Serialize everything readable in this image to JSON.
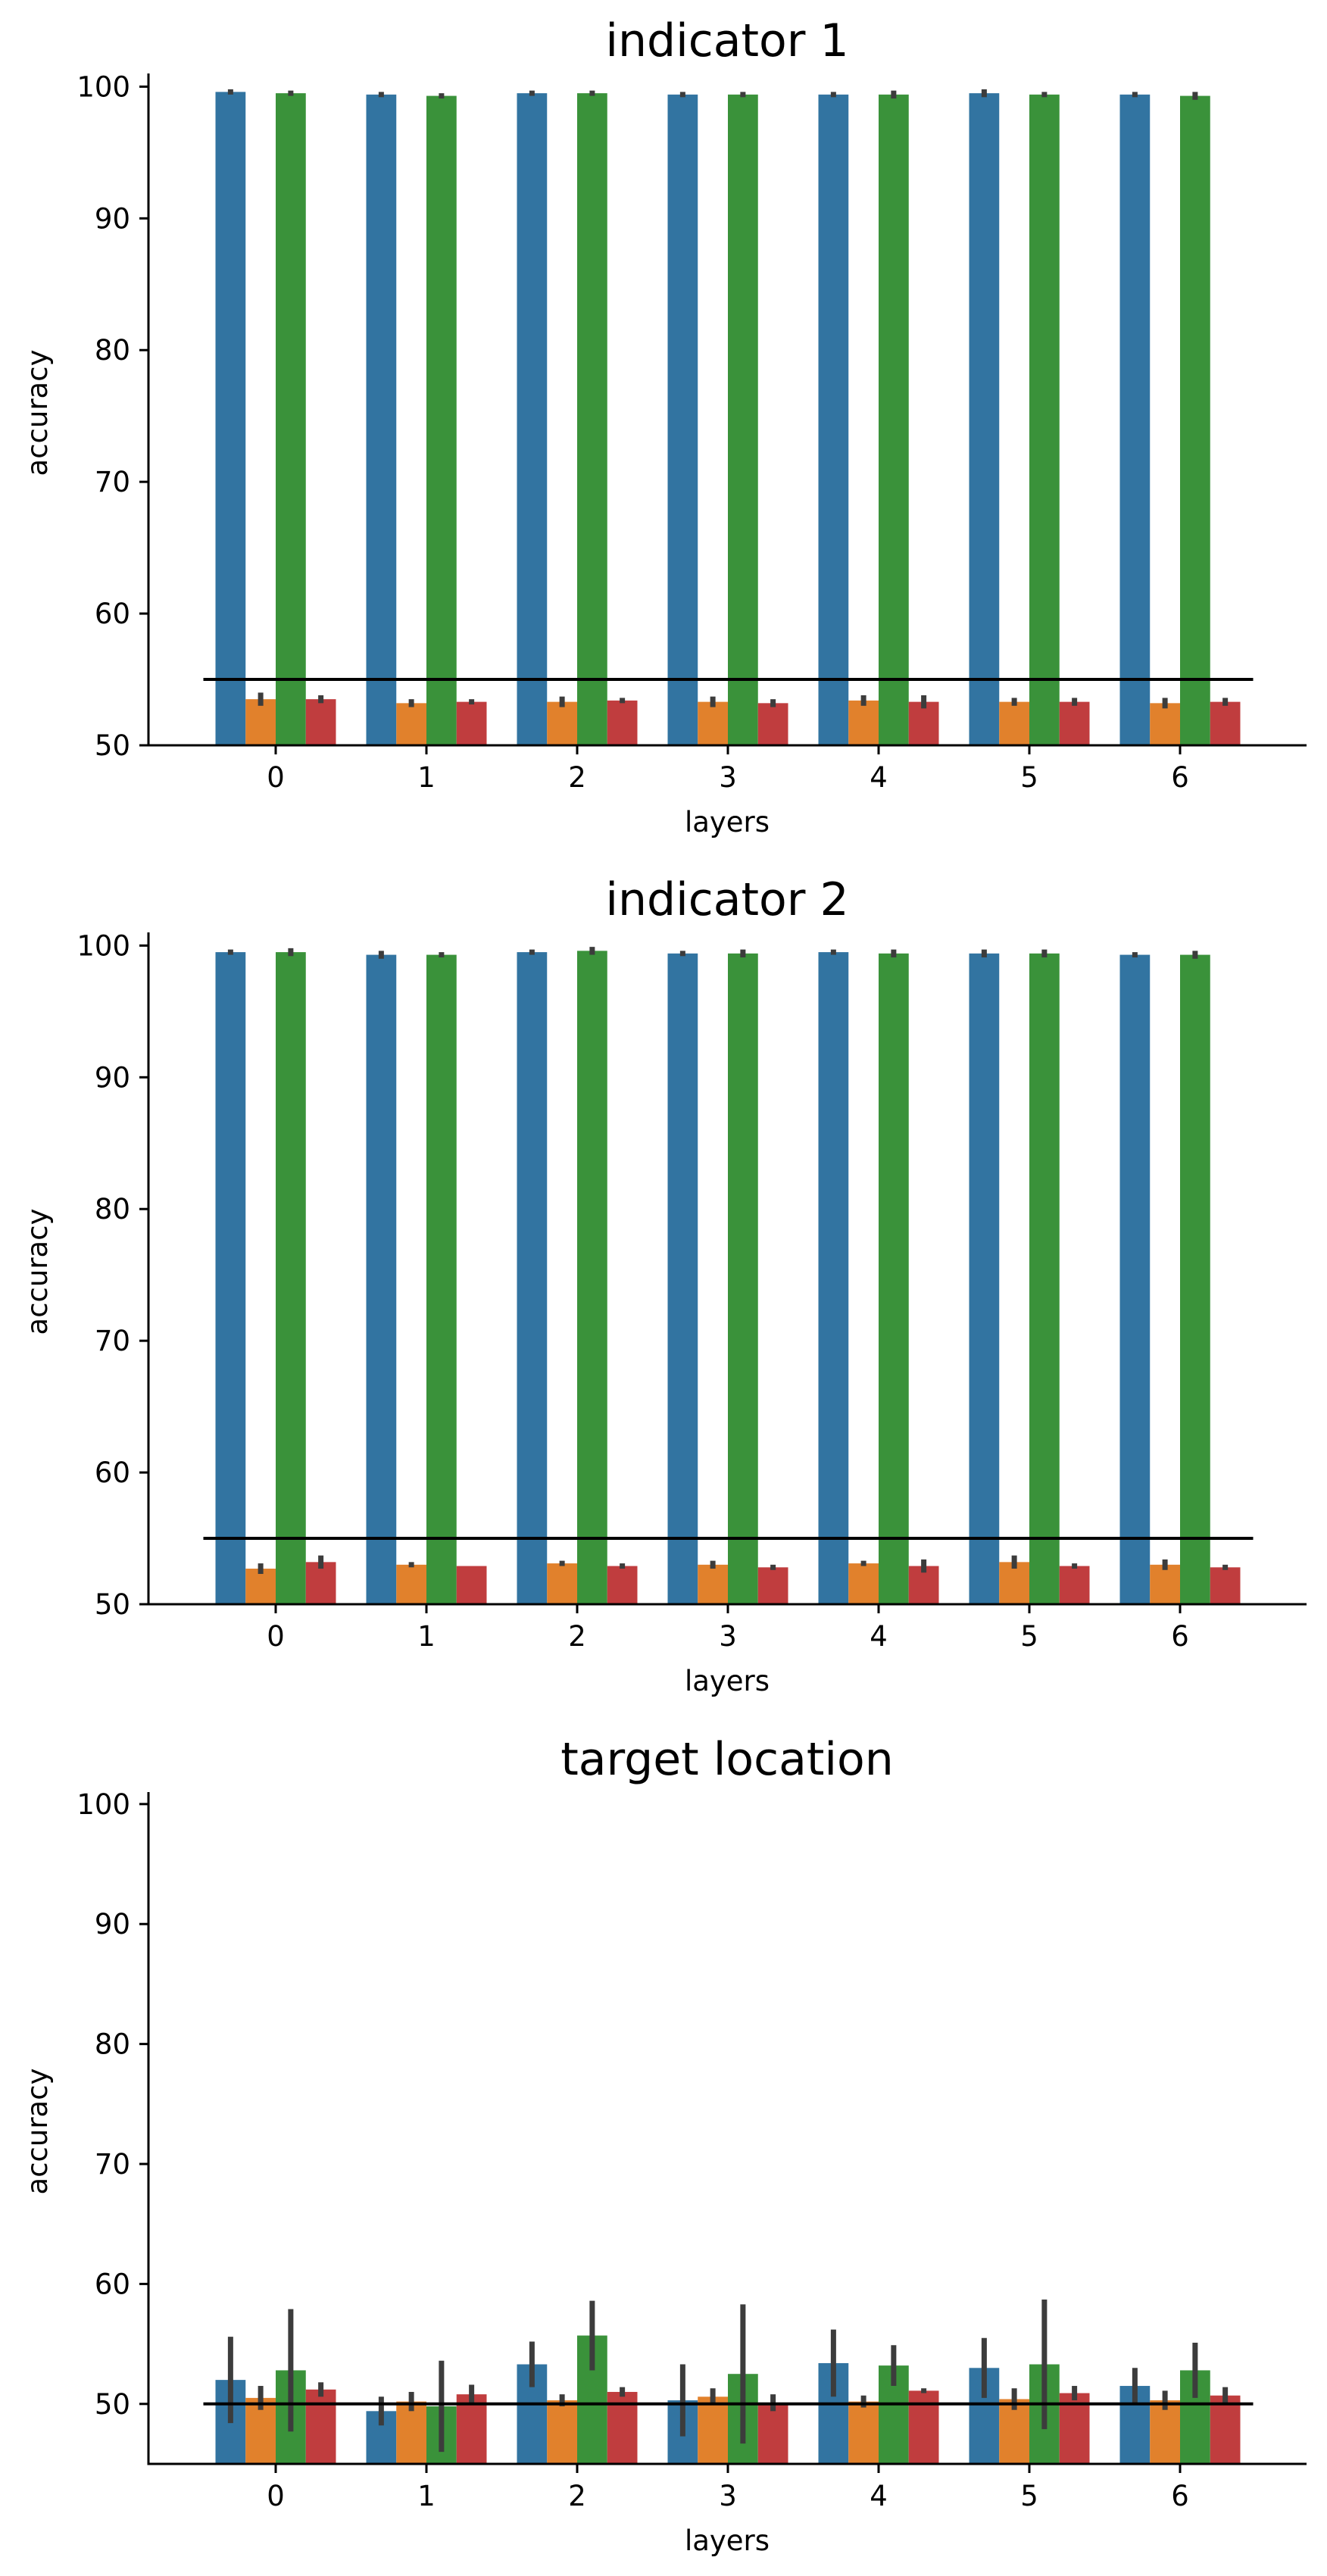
{
  "colors": {
    "series": [
      "#3274a1",
      "#e1812c",
      "#3a923a",
      "#c03d3e"
    ],
    "errorbar": "#3c3c3c",
    "baseline": "#000000"
  },
  "chart_data": [
    {
      "type": "bar",
      "title": "indicator 1",
      "xlabel": "layers",
      "ylabel": "accuracy",
      "categories": [
        "0",
        "1",
        "2",
        "3",
        "4",
        "5",
        "6"
      ],
      "ylim": [
        50,
        101
      ],
      "yticks": [
        50,
        60,
        70,
        80,
        90,
        100
      ],
      "baseline": 55,
      "grid": false,
      "series": [
        {
          "values": [
            99.6,
            99.4,
            99.5,
            99.4,
            99.4,
            99.5,
            99.4
          ],
          "err": [
            0.2,
            0.2,
            0.2,
            0.2,
            0.2,
            0.3,
            0.2
          ]
        },
        {
          "values": [
            53.5,
            53.2,
            53.3,
            53.3,
            53.4,
            53.3,
            53.2
          ],
          "err": [
            0.5,
            0.3,
            0.4,
            0.4,
            0.4,
            0.3,
            0.4
          ]
        },
        {
          "values": [
            99.5,
            99.3,
            99.5,
            99.4,
            99.4,
            99.4,
            99.3
          ],
          "err": [
            0.2,
            0.2,
            0.2,
            0.2,
            0.3,
            0.2,
            0.3
          ]
        },
        {
          "values": [
            53.5,
            53.3,
            53.4,
            53.2,
            53.3,
            53.3,
            53.3
          ],
          "err": [
            0.3,
            0.2,
            0.2,
            0.3,
            0.5,
            0.3,
            0.3
          ]
        }
      ]
    },
    {
      "type": "bar",
      "title": "indicator 2",
      "xlabel": "layers",
      "ylabel": "accuracy",
      "categories": [
        "0",
        "1",
        "2",
        "3",
        "4",
        "5",
        "6"
      ],
      "ylim": [
        50,
        101
      ],
      "yticks": [
        50,
        60,
        70,
        80,
        90,
        100
      ],
      "baseline": 55,
      "grid": false,
      "series": [
        {
          "values": [
            99.5,
            99.3,
            99.5,
            99.4,
            99.5,
            99.4,
            99.3
          ],
          "err": [
            0.2,
            0.3,
            0.2,
            0.2,
            0.2,
            0.3,
            0.2
          ]
        },
        {
          "values": [
            52.7,
            53.0,
            53.1,
            53.0,
            53.1,
            53.2,
            53.0
          ],
          "err": [
            0.4,
            0.2,
            0.2,
            0.3,
            0.2,
            0.5,
            0.4
          ]
        },
        {
          "values": [
            99.5,
            99.3,
            99.6,
            99.4,
            99.4,
            99.4,
            99.3
          ],
          "err": [
            0.3,
            0.2,
            0.3,
            0.3,
            0.3,
            0.3,
            0.3
          ]
        },
        {
          "values": [
            53.2,
            52.9,
            52.9,
            52.8,
            52.9,
            52.9,
            52.8
          ],
          "err": [
            0.5,
            0.0,
            0.2,
            0.2,
            0.5,
            0.2,
            0.2
          ]
        }
      ]
    },
    {
      "type": "bar",
      "title": "target location",
      "xlabel": "layers",
      "ylabel": "accuracy",
      "categories": [
        "0",
        "1",
        "2",
        "3",
        "4",
        "5",
        "6"
      ],
      "ylim": [
        45,
        101
      ],
      "yticks": [
        50,
        60,
        70,
        80,
        90,
        100
      ],
      "baseline": 50,
      "grid": false,
      "series": [
        {
          "values": [
            52.0,
            49.4,
            53.3,
            50.3,
            53.4,
            53.0,
            51.5
          ],
          "err": [
            3.6,
            1.2,
            1.9,
            3.0,
            2.8,
            2.5,
            1.5
          ]
        },
        {
          "values": [
            50.5,
            50.2,
            50.3,
            50.6,
            50.2,
            50.4,
            50.3
          ],
          "err": [
            1.0,
            0.8,
            0.5,
            0.7,
            0.5,
            0.9,
            0.8
          ]
        },
        {
          "values": [
            52.8,
            49.8,
            55.7,
            52.5,
            53.2,
            53.3,
            52.8
          ],
          "err": [
            5.1,
            3.8,
            2.9,
            5.8,
            1.7,
            5.4,
            2.3
          ]
        },
        {
          "values": [
            51.2,
            50.8,
            51.0,
            50.1,
            51.1,
            50.9,
            50.7
          ],
          "err": [
            0.6,
            0.8,
            0.4,
            0.7,
            0.2,
            0.6,
            0.7
          ]
        }
      ]
    }
  ]
}
